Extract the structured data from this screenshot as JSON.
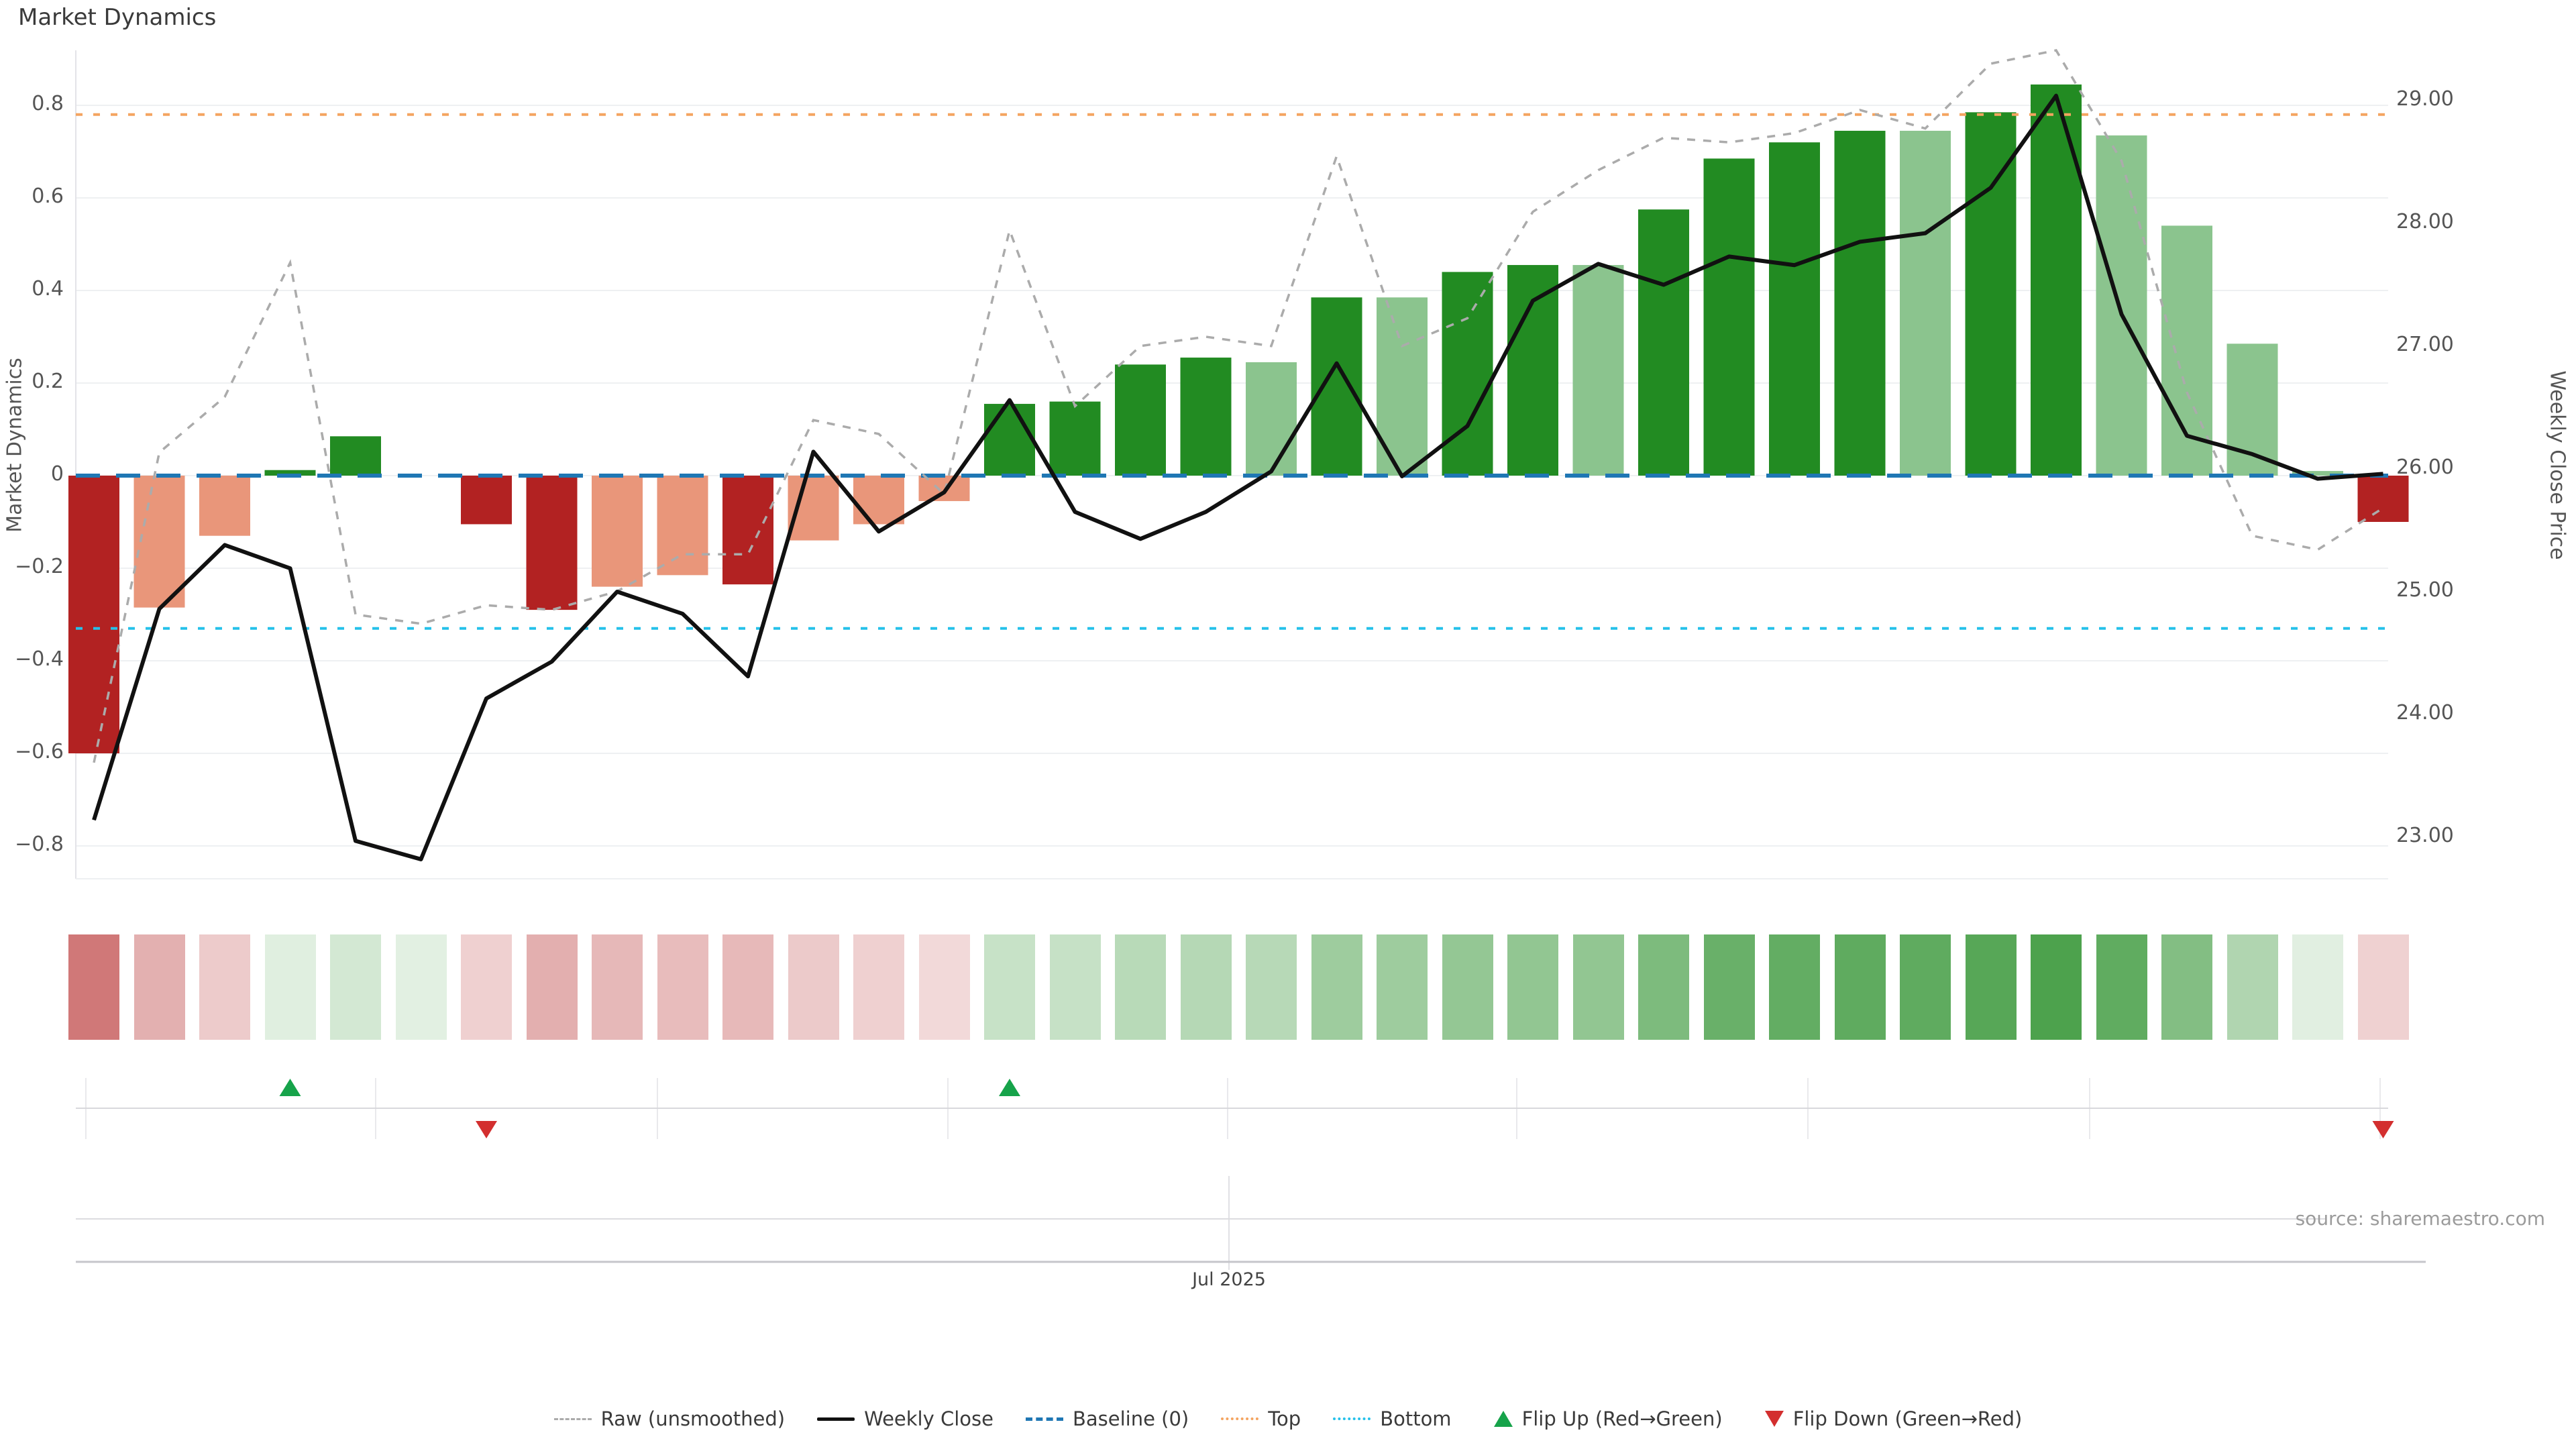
{
  "title": "Market Dynamics",
  "source": "source: sharemaestro.com",
  "left_axis": {
    "label": "Market Dynamics",
    "tick_labels": [
      "0.8",
      "0.6",
      "0.4",
      "0.2",
      "0",
      "−0.2",
      "−0.4",
      "−0.6",
      "−0.8"
    ],
    "tick_values": [
      0.8,
      0.6,
      0.4,
      0.2,
      0,
      -0.2,
      -0.4,
      -0.6,
      -0.8
    ]
  },
  "right_axis": {
    "label": "Weekly Close Price",
    "tick_labels": [
      "29.00",
      "28.00",
      "27.00",
      "26.00",
      "25.00",
      "24.00",
      "23.00"
    ],
    "tick_values": [
      29,
      28,
      27,
      26,
      25,
      24,
      23
    ]
  },
  "x_axis": {
    "tick_labels": [
      "Jul 2025"
    ]
  },
  "legend": [
    {
      "label": "Raw (unsmoothed)",
      "marker": "raw"
    },
    {
      "label": "Weekly Close",
      "marker": "close"
    },
    {
      "label": "Baseline (0)",
      "marker": "baseline"
    },
    {
      "label": "Top",
      "marker": "top"
    },
    {
      "label": "Bottom",
      "marker": "bottom"
    },
    {
      "label": "Flip Up (Red→Green)",
      "marker": "tri-up"
    },
    {
      "label": "Flip Down (Green→Red)",
      "marker": "tri-down"
    }
  ],
  "colors_hex": {
    "strong-red": "#b22222",
    "soft-red": "#e9967a",
    "strong-green": "#228b22",
    "soft-green": "#8bc48e",
    "baseline": "#1f77b4",
    "top": "#f4a460",
    "bottom": "#25c1ea",
    "raw": "#ababab",
    "close": "#111111",
    "flip-up": "#16a34a",
    "flip-down": "#d32f2f",
    "grid": "#eef0f2",
    "spine": "#e3e3e8"
  },
  "chart_data": {
    "type": "bar+line",
    "x_unit": "weeks",
    "n_points": 36,
    "left_ylim": [
      -0.87,
      0.92
    ],
    "right_ylim": [
      22.66,
      29.4
    ],
    "thresholds": {
      "baseline": 0,
      "top": 0.78,
      "bottom": -0.33
    },
    "bar_series": {
      "name": "Market Dynamics",
      "values": [
        -0.6,
        -0.285,
        -0.13,
        0.012,
        0.085,
        0.0,
        -0.105,
        -0.29,
        -0.24,
        -0.215,
        -0.235,
        -0.14,
        -0.105,
        -0.055,
        0.155,
        0.16,
        0.24,
        0.255,
        0.245,
        0.385,
        0.385,
        0.44,
        0.455,
        0.455,
        0.575,
        0.685,
        0.72,
        0.745,
        0.745,
        0.785,
        0.845,
        0.735,
        0.54,
        0.285,
        0.01,
        -0.1
      ],
      "colors": [
        "strong-red",
        "soft-red",
        "soft-red",
        "strong-green",
        "strong-green",
        "strong-green",
        "strong-red",
        "strong-red",
        "soft-red",
        "soft-red",
        "strong-red",
        "soft-red",
        "soft-red",
        "soft-red",
        "strong-green",
        "strong-green",
        "strong-green",
        "strong-green",
        "soft-green",
        "strong-green",
        "soft-green",
        "strong-green",
        "strong-green",
        "soft-green",
        "strong-green",
        "strong-green",
        "strong-green",
        "strong-green",
        "soft-green",
        "strong-green",
        "strong-green",
        "soft-green",
        "soft-green",
        "soft-green",
        "soft-green",
        "strong-red"
      ]
    },
    "line_series": {
      "name": "Weekly Close",
      "axis": "right",
      "values": [
        23.14,
        24.86,
        25.38,
        25.19,
        22.97,
        22.82,
        24.13,
        24.43,
        25.0,
        24.82,
        24.31,
        26.14,
        25.49,
        25.81,
        26.56,
        25.65,
        25.43,
        25.65,
        25.98,
        26.86,
        25.94,
        26.35,
        27.37,
        27.67,
        27.5,
        27.73,
        27.66,
        27.85,
        27.92,
        28.29,
        29.04,
        27.26,
        26.27,
        26.12,
        25.92,
        25.96
      ]
    },
    "raw_series": {
      "name": "Raw (unsmoothed)",
      "axis": "left",
      "values": [
        -0.62,
        0.05,
        0.17,
        0.46,
        -0.3,
        -0.32,
        -0.28,
        -0.29,
        -0.25,
        -0.17,
        -0.17,
        0.12,
        0.09,
        -0.04,
        0.53,
        0.15,
        0.28,
        0.3,
        0.28,
        0.69,
        0.28,
        0.34,
        0.57,
        0.66,
        0.73,
        0.72,
        0.74,
        0.79,
        0.75,
        0.89,
        0.92,
        0.68,
        0.18,
        -0.13,
        -0.16,
        -0.07
      ]
    },
    "flip_up_weeks": [
      4,
      15
    ],
    "flip_down_weeks": [
      7,
      36
    ]
  }
}
